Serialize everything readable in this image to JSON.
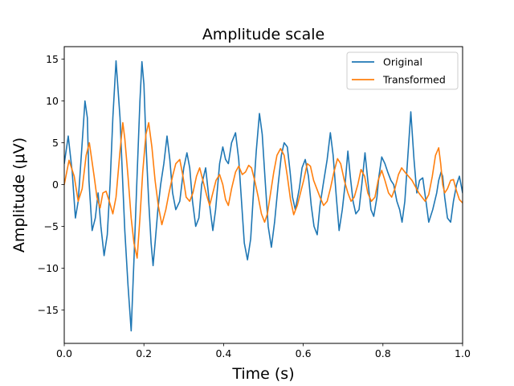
{
  "chart_data": {
    "type": "line",
    "title": "Amplitude scale",
    "xlabel": "Time (s)",
    "ylabel": "Amplitude (μV)",
    "xlim": [
      0,
      1.0
    ],
    "ylim": [
      -19,
      16.5
    ],
    "xticks": [
      0.0,
      0.2,
      0.4,
      0.6,
      0.8,
      1.0
    ],
    "xtick_labels": [
      "0.0",
      "0.2",
      "0.4",
      "0.6",
      "0.8",
      "1.0"
    ],
    "yticks": [
      -15,
      -10,
      -5,
      0,
      5,
      10,
      15
    ],
    "ytick_labels": [
      "−15",
      "−10",
      "−5",
      "0",
      "5",
      "10",
      "15"
    ],
    "grid": false,
    "legend_position": "top-right",
    "series": [
      {
        "name": "Original",
        "color": "#1f77b4",
        "x": [
          0.0,
          0.01,
          0.02,
          0.028,
          0.035,
          0.045,
          0.052,
          0.058,
          0.062,
          0.07,
          0.078,
          0.085,
          0.092,
          0.1,
          0.108,
          0.115,
          0.122,
          0.13,
          0.14,
          0.147,
          0.152,
          0.16,
          0.168,
          0.175,
          0.182,
          0.19,
          0.195,
          0.2,
          0.206,
          0.212,
          0.218,
          0.223,
          0.228,
          0.235,
          0.242,
          0.25,
          0.258,
          0.265,
          0.272,
          0.28,
          0.29,
          0.3,
          0.308,
          0.315,
          0.322,
          0.33,
          0.338,
          0.345,
          0.355,
          0.365,
          0.373,
          0.38,
          0.39,
          0.398,
          0.405,
          0.412,
          0.42,
          0.43,
          0.438,
          0.445,
          0.452,
          0.46,
          0.468,
          0.475,
          0.482,
          0.49,
          0.497,
          0.505,
          0.512,
          0.52,
          0.528,
          0.537,
          0.545,
          0.552,
          0.56,
          0.567,
          0.573,
          0.58,
          0.59,
          0.597,
          0.605,
          0.613,
          0.62,
          0.627,
          0.635,
          0.642,
          0.65,
          0.66,
          0.668,
          0.675,
          0.683,
          0.69,
          0.698,
          0.705,
          0.712,
          0.718,
          0.725,
          0.732,
          0.74,
          0.747,
          0.755,
          0.762,
          0.77,
          0.777,
          0.785,
          0.79,
          0.797,
          0.805,
          0.812,
          0.82,
          0.827,
          0.835,
          0.842,
          0.848,
          0.855,
          0.862,
          0.87,
          0.878,
          0.885,
          0.892,
          0.9,
          0.908,
          0.915,
          0.925,
          0.935,
          0.94,
          0.946,
          0.95,
          0.955,
          0.962,
          0.97,
          0.977,
          0.985,
          0.992,
          1.0
        ],
        "y": [
          2.5,
          5.8,
          1.5,
          -4.0,
          -2.0,
          5.0,
          10.0,
          8.0,
          0.5,
          -5.5,
          -4.0,
          -1.0,
          -5.0,
          -8.5,
          -6.0,
          0.0,
          8.0,
          14.8,
          8.0,
          0.0,
          -5.5,
          -12.0,
          -17.5,
          -9.0,
          0.0,
          10.0,
          14.7,
          12.0,
          4.0,
          -2.0,
          -7.0,
          -9.7,
          -7.0,
          -3.0,
          0.0,
          2.5,
          5.8,
          3.0,
          -1.0,
          -3.0,
          -2.0,
          2.0,
          3.8,
          2.0,
          -2.0,
          -5.0,
          -4.0,
          0.0,
          2.0,
          -2.5,
          -5.5,
          -3.0,
          2.5,
          4.5,
          3.0,
          2.5,
          5.0,
          6.2,
          3.0,
          -2.0,
          -7.0,
          -9.0,
          -6.5,
          -1.0,
          4.0,
          8.5,
          6.0,
          0.0,
          -5.0,
          -7.5,
          -4.5,
          0.0,
          3.5,
          5.0,
          4.5,
          1.5,
          -1.5,
          -3.0,
          -0.5,
          2.0,
          3.0,
          1.0,
          -2.5,
          -5.0,
          -6.0,
          -2.5,
          0.0,
          3.0,
          6.2,
          3.5,
          -1.5,
          -5.5,
          -3.0,
          0.0,
          4.0,
          1.0,
          -2.0,
          -3.5,
          -3.0,
          0.0,
          3.8,
          0.5,
          -3.0,
          -3.8,
          -1.5,
          1.0,
          3.3,
          2.5,
          1.5,
          0.5,
          0.0,
          -2.0,
          -3.0,
          -4.5,
          -2.0,
          3.0,
          8.7,
          3.0,
          -1.0,
          0.5,
          0.8,
          -2.0,
          -4.5,
          -3.0,
          -1.0,
          0.5,
          1.5,
          1.0,
          -1.5,
          -4.0,
          -4.5,
          -2.0,
          0.0,
          1.0,
          -1.0
        ]
      },
      {
        "name": "Transformed",
        "color": "#ff7f0e",
        "x": [
          0.0,
          0.012,
          0.025,
          0.035,
          0.045,
          0.055,
          0.063,
          0.075,
          0.082,
          0.09,
          0.097,
          0.105,
          0.113,
          0.122,
          0.13,
          0.14,
          0.147,
          0.152,
          0.16,
          0.168,
          0.175,
          0.183,
          0.19,
          0.197,
          0.205,
          0.212,
          0.22,
          0.228,
          0.236,
          0.245,
          0.255,
          0.263,
          0.272,
          0.28,
          0.29,
          0.298,
          0.306,
          0.315,
          0.323,
          0.332,
          0.34,
          0.348,
          0.357,
          0.365,
          0.373,
          0.381,
          0.39,
          0.398,
          0.405,
          0.412,
          0.42,
          0.43,
          0.438,
          0.447,
          0.455,
          0.463,
          0.47,
          0.478,
          0.487,
          0.495,
          0.503,
          0.51,
          0.518,
          0.526,
          0.534,
          0.543,
          0.552,
          0.56,
          0.568,
          0.576,
          0.585,
          0.593,
          0.601,
          0.61,
          0.618,
          0.626,
          0.634,
          0.642,
          0.651,
          0.66,
          0.668,
          0.677,
          0.686,
          0.694,
          0.703,
          0.712,
          0.72,
          0.728,
          0.737,
          0.745,
          0.754,
          0.762,
          0.771,
          0.78,
          0.788,
          0.797,
          0.805,
          0.814,
          0.822,
          0.83,
          0.839,
          0.847,
          0.855,
          0.864,
          0.873,
          0.881,
          0.89,
          0.898,
          0.906,
          0.915,
          0.924,
          0.932,
          0.94,
          0.945,
          0.95,
          0.955,
          0.962,
          0.97,
          0.977,
          0.985,
          0.992,
          1.0
        ],
        "y": [
          0.0,
          2.9,
          1.0,
          -2.0,
          -0.5,
          3.5,
          5.0,
          1.0,
          -1.5,
          -2.8,
          -1.0,
          -0.8,
          -2.0,
          -3.5,
          -1.5,
          4.0,
          7.4,
          5.5,
          1.0,
          -4.0,
          -7.0,
          -8.8,
          -4.0,
          1.5,
          6.0,
          7.4,
          4.5,
          0.5,
          -2.5,
          -4.8,
          -3.0,
          -1.0,
          1.0,
          2.5,
          3.0,
          1.0,
          -1.5,
          -2.0,
          -1.0,
          1.0,
          2.0,
          0.5,
          -1.2,
          -2.5,
          -1.0,
          0.5,
          1.2,
          0.0,
          -1.8,
          -2.5,
          -0.5,
          1.5,
          2.2,
          1.2,
          1.5,
          2.3,
          2.0,
          0.5,
          -1.5,
          -3.5,
          -4.5,
          -3.5,
          -1.0,
          1.5,
          3.5,
          4.3,
          3.5,
          1.0,
          -1.8,
          -3.6,
          -2.5,
          -1.0,
          0.5,
          2.5,
          2.2,
          0.5,
          -0.5,
          -1.5,
          -2.5,
          -2.0,
          -0.5,
          1.5,
          3.1,
          2.5,
          0.5,
          -1.0,
          -2.0,
          -1.5,
          0.0,
          1.8,
          1.0,
          -1.0,
          -2.0,
          -1.5,
          0.5,
          1.7,
          0.5,
          -1.0,
          -1.5,
          -0.5,
          1.2,
          2.0,
          1.5,
          1.0,
          0.5,
          -0.2,
          -1.0,
          -1.5,
          -2.0,
          -1.2,
          1.0,
          3.5,
          4.4,
          2.5,
          0.0,
          -1.0,
          -0.5,
          0.5,
          0.6,
          -0.8,
          -1.8,
          -2.2
        ]
      }
    ]
  }
}
